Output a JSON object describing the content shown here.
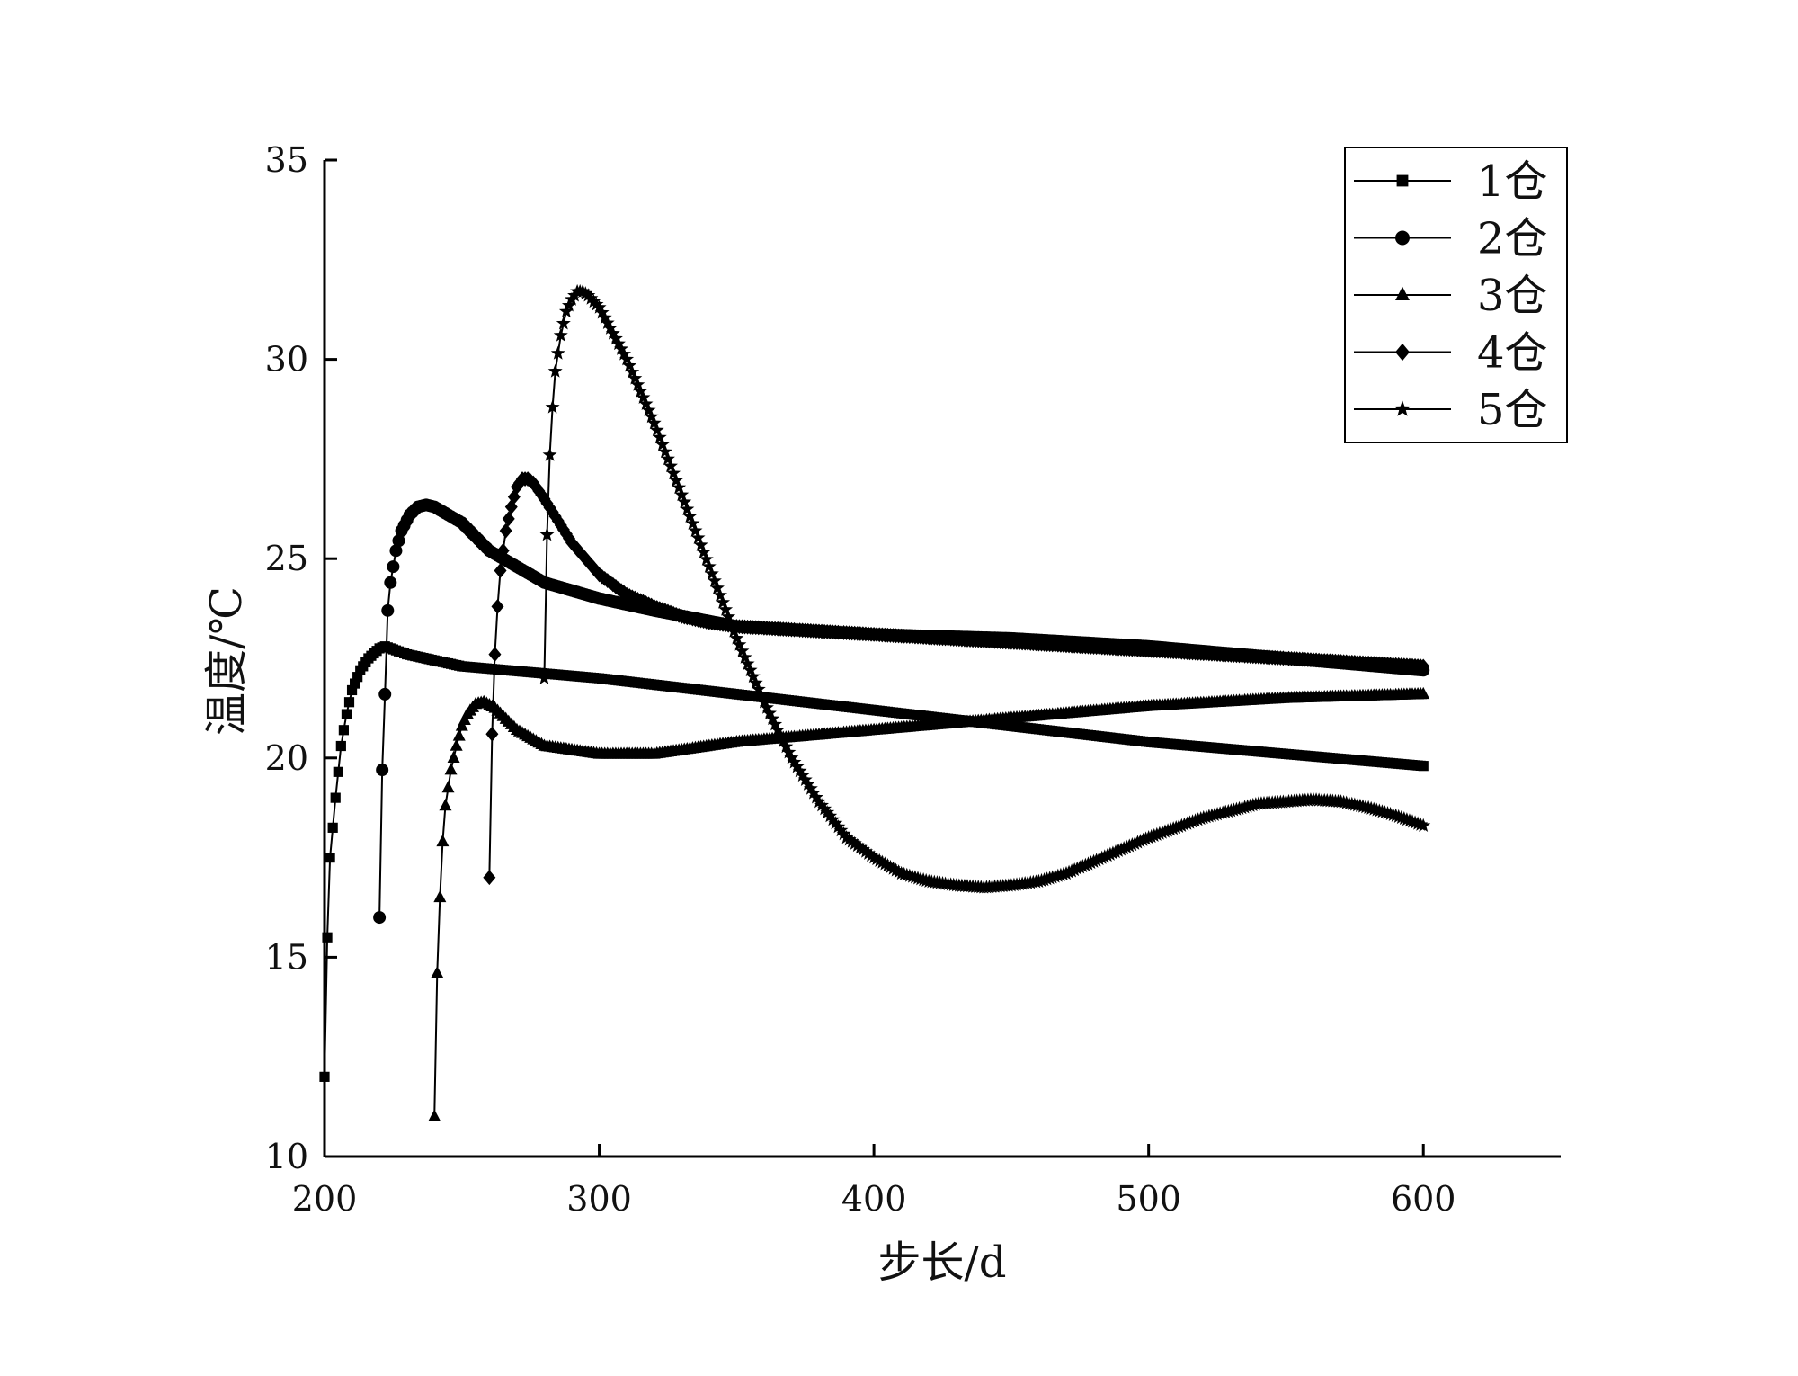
{
  "chart_data": {
    "type": "line",
    "title": "",
    "xlabel": "步长/d",
    "ylabel": "温度/℃",
    "xlim": [
      200,
      650
    ],
    "ylim": [
      10,
      35
    ],
    "xticks": [
      200,
      300,
      400,
      500,
      600
    ],
    "yticks": [
      10,
      15,
      20,
      25,
      30,
      35
    ],
    "grid": false,
    "legend_position": "top-right",
    "series": [
      {
        "name": "1仓",
        "marker": "square",
        "x": [
          200,
          201,
          202,
          204,
          206,
          208,
          210,
          213,
          216,
          220,
          222,
          230,
          250,
          300,
          350,
          400,
          450,
          500,
          550,
          600
        ],
        "y": [
          12.0,
          15.5,
          17.5,
          19.0,
          20.3,
          21.1,
          21.7,
          22.2,
          22.5,
          22.75,
          22.8,
          22.6,
          22.3,
          22.0,
          21.6,
          21.2,
          20.8,
          20.4,
          20.1,
          19.8
        ]
      },
      {
        "name": "2仓",
        "marker": "circle",
        "x": [
          220,
          221,
          222,
          223,
          224,
          226,
          228,
          231,
          234,
          237,
          240,
          250,
          260,
          280,
          300,
          320,
          350,
          400,
          450,
          500,
          550,
          600
        ],
        "y": [
          16.0,
          19.7,
          21.6,
          23.7,
          24.4,
          25.2,
          25.7,
          26.1,
          26.3,
          26.35,
          26.3,
          25.9,
          25.2,
          24.4,
          24.0,
          23.7,
          23.3,
          23.1,
          23.0,
          22.8,
          22.5,
          22.2
        ]
      },
      {
        "name": "3仓",
        "marker": "triangle",
        "x": [
          240,
          241,
          242,
          243,
          244,
          246,
          248,
          250,
          252,
          255,
          258,
          262,
          270,
          280,
          300,
          320,
          350,
          400,
          450,
          500,
          550,
          600
        ],
        "y": [
          11.0,
          14.6,
          16.5,
          17.9,
          18.8,
          19.7,
          20.3,
          20.8,
          21.1,
          21.35,
          21.4,
          21.25,
          20.7,
          20.3,
          20.1,
          20.1,
          20.4,
          20.7,
          21.0,
          21.3,
          21.5,
          21.6
        ]
      },
      {
        "name": "4仓",
        "marker": "diamond",
        "x": [
          260,
          261,
          262,
          263,
          264,
          266,
          268,
          270,
          272,
          274,
          276,
          280,
          290,
          300,
          310,
          320,
          330,
          340,
          350,
          400,
          450,
          500,
          550,
          600
        ],
        "y": [
          17.0,
          20.6,
          22.6,
          23.8,
          24.7,
          25.7,
          26.3,
          26.8,
          27.0,
          27.0,
          26.9,
          26.5,
          25.4,
          24.6,
          24.1,
          23.8,
          23.55,
          23.4,
          23.3,
          23.1,
          22.9,
          22.7,
          22.5,
          22.3
        ]
      },
      {
        "name": "5仓",
        "marker": "star",
        "x": [
          280,
          281,
          282,
          283,
          284,
          286,
          288,
          290,
          292,
          294,
          296,
          300,
          310,
          320,
          330,
          340,
          350,
          360,
          370,
          380,
          390,
          400,
          410,
          420,
          430,
          440,
          450,
          460,
          470,
          480,
          500,
          520,
          540,
          560,
          570,
          580,
          590,
          600
        ],
        "y": [
          22.0,
          25.6,
          27.6,
          28.8,
          29.7,
          30.6,
          31.2,
          31.5,
          31.7,
          31.7,
          31.6,
          31.3,
          30.0,
          28.4,
          26.6,
          24.8,
          23.0,
          21.4,
          20.0,
          18.9,
          18.0,
          17.5,
          17.1,
          16.9,
          16.8,
          16.75,
          16.8,
          16.9,
          17.1,
          17.4,
          18.0,
          18.5,
          18.85,
          18.95,
          18.9,
          18.75,
          18.55,
          18.3
        ]
      }
    ]
  }
}
